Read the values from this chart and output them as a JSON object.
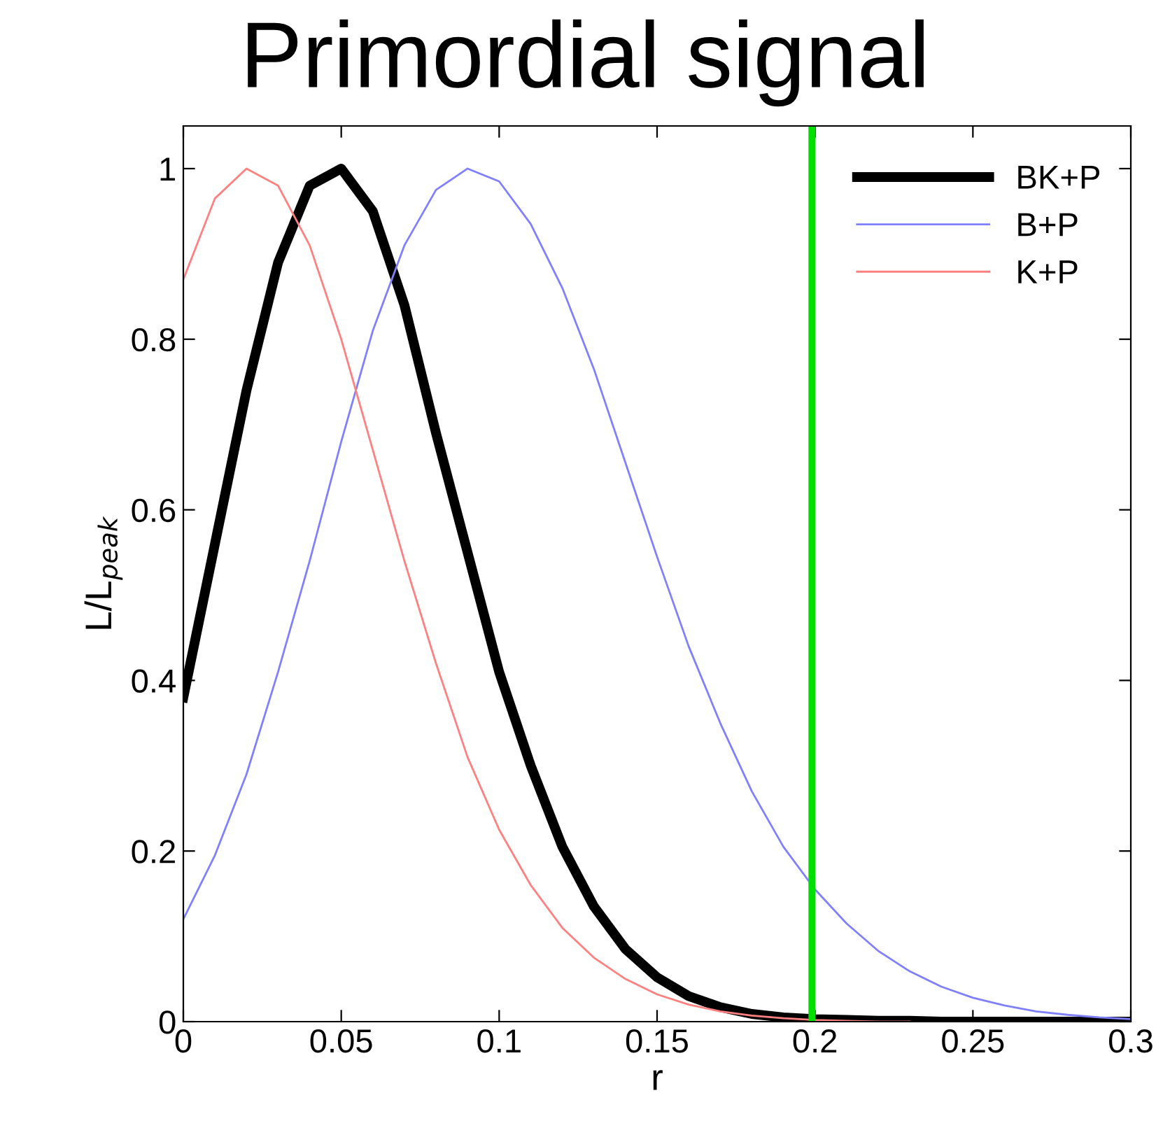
{
  "chart_data": {
    "type": "line",
    "title": "Primordial signal",
    "xlabel": "r",
    "ylabel": "L/L$_{peak}$",
    "x": [
      0,
      0.01,
      0.02,
      0.03,
      0.04,
      0.05,
      0.06,
      0.07,
      0.08,
      0.09,
      0.1,
      0.11,
      0.12,
      0.13,
      0.14,
      0.15,
      0.16,
      0.17,
      0.18,
      0.19,
      0.2,
      0.21,
      0.22,
      0.23,
      0.24,
      0.25,
      0.26,
      0.27,
      0.28,
      0.29,
      0.3
    ],
    "series": [
      {
        "name": "BK+P",
        "color": "#000000",
        "values": [
          0.38,
          0.56,
          0.74,
          0.89,
          0.98,
          1.0,
          0.95,
          0.84,
          0.69,
          0.55,
          0.41,
          0.3,
          0.205,
          0.135,
          0.085,
          0.052,
          0.03,
          0.017,
          0.009,
          0.005,
          0.003,
          0.002,
          0.001,
          0.001,
          0,
          0,
          0,
          0,
          0,
          0,
          0
        ]
      },
      {
        "name": "B+P",
        "color": "#8080ff",
        "values": [
          0.12,
          0.195,
          0.29,
          0.41,
          0.54,
          0.68,
          0.81,
          0.91,
          0.975,
          1.0,
          0.985,
          0.935,
          0.86,
          0.765,
          0.655,
          0.545,
          0.44,
          0.35,
          0.27,
          0.205,
          0.155,
          0.115,
          0.083,
          0.059,
          0.041,
          0.028,
          0.019,
          0.012,
          0.008,
          0.005,
          0.003
        ]
      },
      {
        "name": "K+P",
        "color": "#ff8080",
        "values": [
          0.87,
          0.965,
          1.0,
          0.98,
          0.91,
          0.8,
          0.67,
          0.54,
          0.42,
          0.31,
          0.225,
          0.16,
          0.11,
          0.075,
          0.05,
          0.032,
          0.02,
          0.012,
          0.007,
          0.004,
          0.002,
          0.001,
          0,
          0,
          null,
          null,
          null,
          null,
          null,
          null,
          null
        ]
      }
    ],
    "ref_lines": [
      {
        "axis": "x",
        "value": 0.199,
        "color": "#00e000"
      }
    ],
    "xlim": [
      0,
      0.3
    ],
    "xticks": [
      0,
      0.05,
      0.1,
      0.15,
      0.2,
      0.25,
      0.3
    ],
    "ylim": [
      0,
      1.05
    ],
    "yticks": [
      0,
      0.2,
      0.4,
      0.6,
      0.8,
      1
    ],
    "grid": false,
    "legend": "top right",
    "marker": "none",
    "line_style": "solid"
  }
}
